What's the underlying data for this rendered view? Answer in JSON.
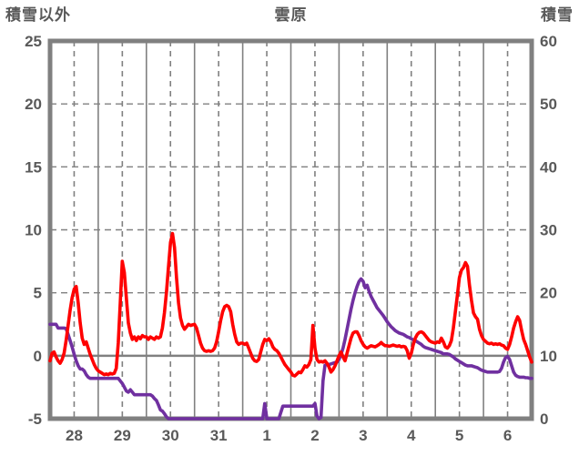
{
  "chart_data": {
    "type": "line",
    "title": "雲原",
    "left_axis": {
      "label": "積雪以外",
      "min": -5,
      "max": 25,
      "ticks": [
        25,
        20,
        15,
        10,
        5,
        0,
        -5
      ]
    },
    "right_axis": {
      "label": "積雪",
      "min": 0,
      "max": 60,
      "ticks": [
        60,
        50,
        40,
        30,
        20,
        10,
        0
      ]
    },
    "x_axis": {
      "day_labels": [
        "28",
        "29",
        "30",
        "31",
        "1",
        "2",
        "3",
        "4",
        "5",
        "6"
      ],
      "days": 10,
      "points_per_day": 24,
      "label_position": "noon",
      "grid_solid": "midnight",
      "grid_dashed": "noon"
    },
    "grid": {
      "color": "#808080",
      "frame_color": "#808080",
      "zero_line": true
    },
    "series": [
      {
        "name": "積雪",
        "axis": "right",
        "color": "#7030A0",
        "values": [
          15.0,
          15.0,
          15.0,
          15.0,
          14.4,
          14.4,
          14.4,
          14.4,
          14.3,
          13.4,
          12.4,
          11.4,
          10.2,
          9.2,
          8.4,
          7.9,
          7.9,
          7.6,
          7.0,
          6.6,
          6.4,
          6.4,
          6.4,
          6.4,
          6.4,
          6.4,
          6.4,
          6.4,
          6.4,
          6.4,
          6.4,
          6.4,
          6.4,
          6.4,
          6.4,
          6.0,
          5.6,
          5.0,
          4.4,
          4.2,
          4.6,
          4.2,
          3.8,
          3.8,
          3.8,
          3.8,
          3.8,
          3.8,
          3.8,
          3.8,
          3.8,
          3.6,
          3.2,
          2.9,
          2.2,
          1.4,
          1.2,
          0.8,
          0.3,
          0.0,
          0.0,
          0.0,
          0.0,
          0.0,
          0.0,
          0.0,
          0.0,
          0.0,
          0.0,
          0.0,
          0.0,
          0.0,
          0.0,
          0.0,
          0.0,
          0.0,
          0.0,
          0.0,
          0.0,
          0.0,
          0.0,
          0.0,
          0.0,
          0.0,
          0.0,
          0.0,
          0.0,
          0.0,
          0.0,
          0.0,
          0.0,
          0.0,
          0.0,
          0.0,
          0.0,
          0.0,
          0.0,
          0.0,
          0.0,
          0.0,
          0.0,
          0.0,
          0.0,
          0.0,
          0.0,
          0.0,
          0.0,
          2.4,
          0.0,
          0.0,
          0.0,
          0.0,
          0.0,
          0.0,
          0.0,
          1.0,
          2.0,
          2.0,
          2.0,
          2.0,
          2.0,
          2.0,
          2.0,
          2.0,
          2.0,
          2.0,
          2.0,
          2.0,
          2.0,
          2.0,
          2.0,
          2.0,
          2.4,
          0.4,
          0.0,
          0.2,
          6.0,
          8.5,
          8.6,
          8.6,
          8.7,
          8.8,
          8.9,
          9.0,
          9.4,
          10.2,
          11.2,
          12.6,
          14.2,
          15.8,
          17.4,
          18.8,
          20.0,
          21.0,
          21.8,
          22.2,
          21.8,
          20.8,
          21.2,
          20.2,
          19.4,
          18.8,
          18.2,
          17.6,
          17.2,
          16.8,
          16.4,
          15.9,
          15.4,
          15.0,
          14.6,
          14.3,
          14.0,
          13.8,
          13.6,
          13.5,
          13.4,
          13.2,
          13.0,
          12.9,
          12.7,
          12.5,
          12.4,
          12.2,
          12.0,
          11.8,
          11.5,
          11.3,
          11.2,
          11.1,
          11.0,
          10.9,
          10.8,
          10.7,
          10.6,
          10.5,
          10.3,
          10.3,
          10.3,
          10.2,
          10.0,
          9.8,
          9.5,
          9.3,
          9.1,
          8.9,
          8.7,
          8.5,
          8.4,
          8.4,
          8.4,
          8.3,
          8.2,
          8.1,
          7.9,
          7.7,
          7.6,
          7.5,
          7.4,
          7.4,
          7.4,
          7.4,
          7.4,
          7.4,
          7.5,
          8.0,
          9.0,
          9.7,
          9.9,
          9.4,
          8.4,
          7.4,
          6.9,
          6.7,
          6.6,
          6.6,
          6.6,
          6.5,
          6.5,
          6.4,
          6.4
        ]
      },
      {
        "name": "積雪以外",
        "axis": "left",
        "color": "#FF0000",
        "values": [
          -0.4,
          0.2,
          0.3,
          -0.1,
          -0.4,
          -0.6,
          -0.3,
          0.2,
          1.2,
          2.4,
          3.6,
          4.6,
          5.3,
          5.5,
          4.2,
          2.6,
          1.4,
          0.9,
          1.1,
          0.6,
          0.1,
          -0.3,
          -0.7,
          -1.0,
          -1.2,
          -1.3,
          -1.4,
          -1.5,
          -1.45,
          -1.5,
          -1.4,
          -1.45,
          -1.4,
          -1.0,
          1.0,
          4.2,
          7.5,
          6.6,
          4.6,
          2.6,
          1.8,
          1.3,
          1.5,
          1.2,
          1.5,
          1.35,
          1.6,
          1.5,
          1.5,
          1.3,
          1.5,
          1.4,
          1.3,
          1.5,
          1.4,
          1.5,
          2.2,
          3.4,
          5.0,
          7.0,
          9.0,
          9.7,
          8.6,
          6.2,
          4.2,
          3.0,
          2.4,
          2.1,
          2.3,
          2.5,
          2.4,
          2.45,
          2.5,
          2.2,
          1.6,
          1.0,
          0.6,
          0.4,
          0.35,
          0.4,
          0.35,
          0.4,
          0.6,
          1.1,
          1.9,
          2.8,
          3.5,
          3.9,
          4.0,
          3.9,
          3.5,
          2.5,
          1.7,
          1.1,
          0.9,
          1.0,
          1.0,
          0.9,
          1.0,
          0.6,
          0.2,
          -0.2,
          -0.4,
          -0.45,
          -0.3,
          0.3,
          0.9,
          1.3,
          1.2,
          1.35,
          1.1,
          0.7,
          0.5,
          0.4,
          0.2,
          -0.1,
          -0.4,
          -0.7,
          -0.9,
          -1.1,
          -1.3,
          -1.55,
          -1.6,
          -1.45,
          -1.3,
          -1.35,
          -1.1,
          -0.8,
          -0.9,
          -0.7,
          -0.3,
          2.4,
          0.6,
          -0.3,
          -0.5,
          -0.45,
          -0.5,
          -0.4,
          -0.6,
          -0.9,
          -1.3,
          -1.1,
          -0.8,
          -0.4,
          0.0,
          0.3,
          -0.1,
          -0.4,
          0.2,
          0.8,
          1.4,
          1.8,
          1.9,
          1.9,
          1.6,
          1.2,
          0.9,
          0.7,
          0.6,
          0.7,
          0.8,
          0.75,
          0.7,
          0.8,
          0.9,
          1.05,
          0.9,
          0.8,
          0.8,
          0.75,
          0.8,
          0.85,
          0.8,
          0.75,
          0.8,
          0.7,
          0.75,
          0.7,
          0.4,
          -0.2,
          0.2,
          0.9,
          1.4,
          1.7,
          1.85,
          1.9,
          1.8,
          1.6,
          1.4,
          1.2,
          1.1,
          1.05,
          1.0,
          1.1,
          1.05,
          1.4,
          1.1,
          0.7,
          0.6,
          0.8,
          1.2,
          2.2,
          3.5,
          4.8,
          6.2,
          6.8,
          7.0,
          7.4,
          7.1,
          5.6,
          4.4,
          3.4,
          3.1,
          2.9,
          2.1,
          1.6,
          1.3,
          1.15,
          1.0,
          0.95,
          1.0,
          0.9,
          0.95,
          0.9,
          0.95,
          0.85,
          0.8,
          0.6,
          0.5,
          0.9,
          1.5,
          2.2,
          2.7,
          3.1,
          2.8,
          2.0,
          1.3,
          0.9,
          0.4,
          -0.1,
          -0.5
        ]
      }
    ]
  }
}
